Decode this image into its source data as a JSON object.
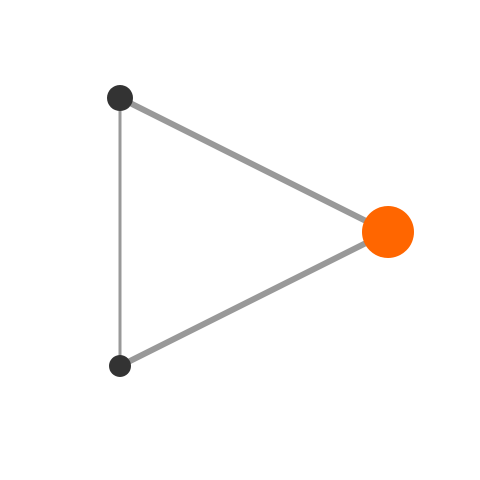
{
  "graph": {
    "nodes": [
      {
        "id": "node-top-left",
        "color": "#333333",
        "role": "normal"
      },
      {
        "id": "node-bottom-left",
        "color": "#333333",
        "role": "normal"
      },
      {
        "id": "node-right",
        "color": "#ff6600",
        "role": "highlighted"
      }
    ],
    "edges": [
      {
        "from": "node-top-left",
        "to": "node-right",
        "color": "#999999",
        "weight": "thick"
      },
      {
        "from": "node-bottom-left",
        "to": "node-right",
        "color": "#999999",
        "weight": "thick"
      },
      {
        "from": "node-top-left",
        "to": "node-bottom-left",
        "color": "#999999",
        "weight": "thin"
      }
    ]
  },
  "colors": {
    "background": "#ffffff",
    "node": "#333333",
    "highlight": "#ff6600",
    "edge": "#999999"
  }
}
